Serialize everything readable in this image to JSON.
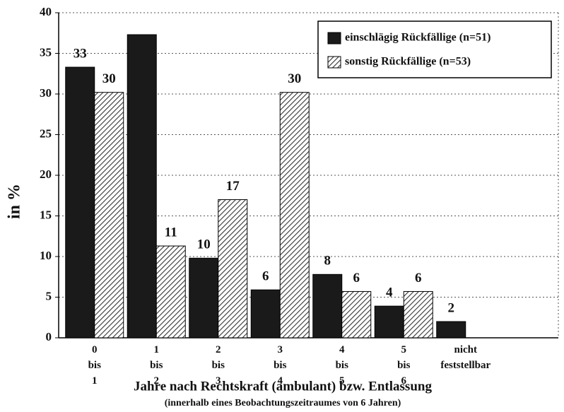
{
  "chart_data": {
    "type": "bar",
    "title": "Jahre nach Rechtskraft (ambulant) bzw. Entlassung",
    "subtitle": "(innerhalb eines Beobachtungszeitraumes von 6 Jahren)",
    "y_label": "in %",
    "categories": [
      "0 bis 1",
      "1 bis 2",
      "2 bis 3",
      "3 bis 4",
      "4 bis 5",
      "5 bis 6",
      "nicht feststellbar"
    ],
    "series": [
      {
        "name": "einschlägig Rückfällige (n=51)",
        "color": "#1a1a1a",
        "pattern": "solid",
        "values": [
          33.3,
          37.3,
          9.8,
          5.9,
          7.8,
          3.9,
          2.0
        ],
        "value_labels": [
          "33",
          null,
          "10",
          "6",
          "8",
          "4",
          "2"
        ]
      },
      {
        "name": "sonstig Rückfällige (n=53)",
        "color": "#444444",
        "pattern": "hatched",
        "values": [
          30.2,
          11.3,
          17.0,
          30.2,
          5.7,
          5.7,
          null
        ],
        "value_labels": [
          "30",
          "11",
          "17",
          "30",
          "6",
          "6",
          null
        ]
      }
    ],
    "ylim": [
      0,
      40
    ],
    "yticks": [
      0,
      5,
      10,
      15,
      20,
      25,
      30,
      35,
      40
    ],
    "grid": true,
    "legend": "top-right"
  }
}
